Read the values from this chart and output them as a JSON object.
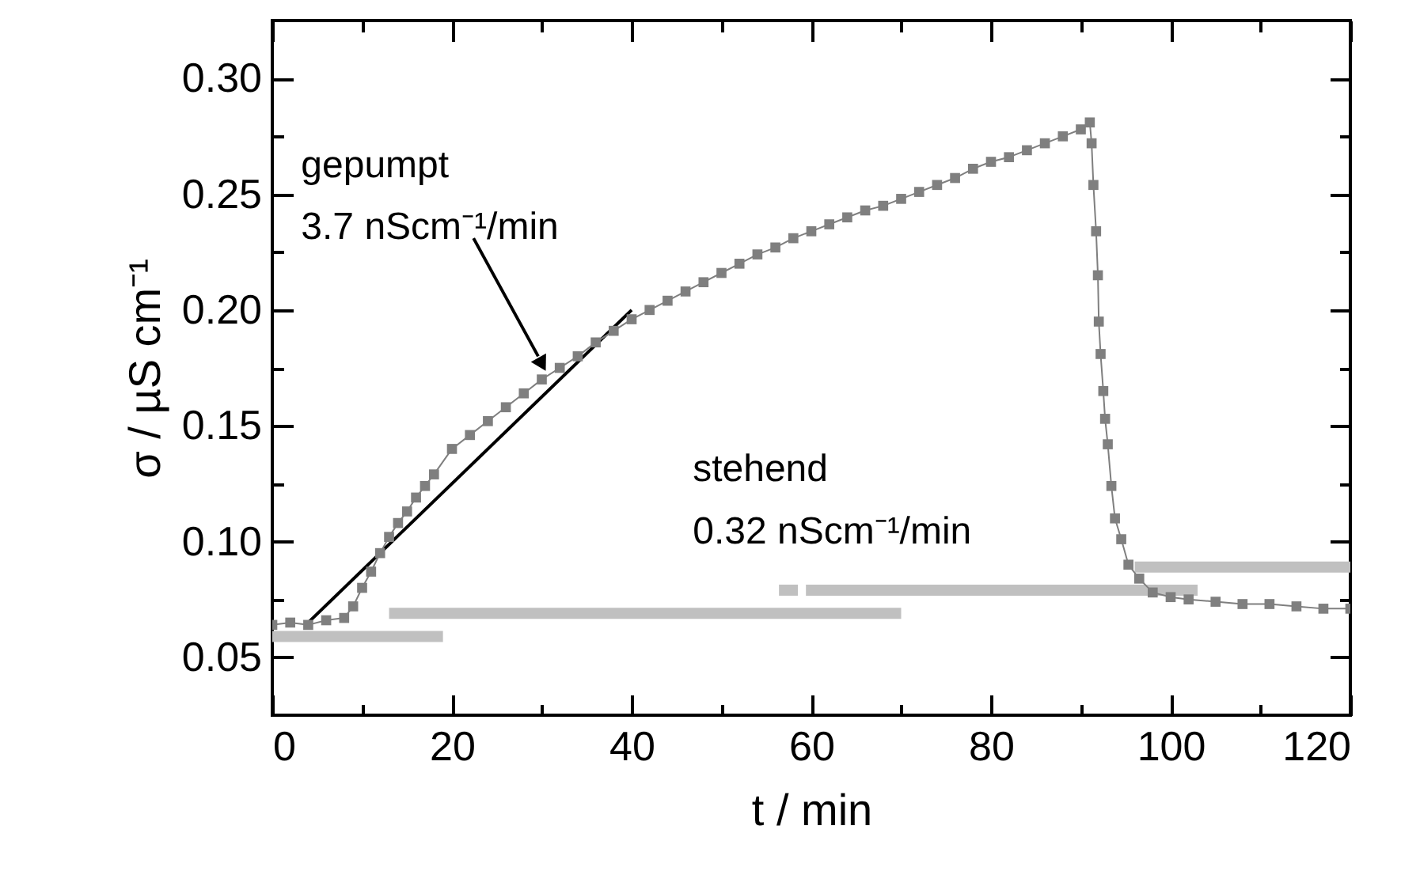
{
  "chart_data": {
    "type": "line",
    "xlabel": "t / min",
    "ylabel": "σ / µS cm⁻¹",
    "xlim": [
      0,
      120
    ],
    "ylim": [
      0.025,
      0.325
    ],
    "xticks": [
      0,
      {
        "value": 10,
        "label": null
      },
      20,
      {
        "value": 30,
        "label": null
      },
      40,
      {
        "value": 50,
        "label": null
      },
      60,
      {
        "value": 70,
        "label": null
      },
      80,
      {
        "value": 90,
        "label": null
      },
      100,
      {
        "value": 110,
        "label": null
      },
      120
    ],
    "yticks": [
      {
        "value": 0.05,
        "label": "0.05"
      },
      {
        "value": 0.075,
        "label": null
      },
      {
        "value": 0.1,
        "label": "0.10"
      },
      {
        "value": 0.125,
        "label": null
      },
      {
        "value": 0.15,
        "label": "0.15"
      },
      {
        "value": 0.175,
        "label": null
      },
      {
        "value": 0.2,
        "label": "0.20"
      },
      {
        "value": 0.225,
        "label": null
      },
      {
        "value": 0.25,
        "label": "0.25"
      },
      {
        "value": 0.275,
        "label": null
      },
      {
        "value": 0.3,
        "label": "0.30"
      }
    ],
    "marker": "square",
    "series": [
      {
        "color": "#7f7f7f",
        "x": [
          0,
          2,
          4,
          6,
          8,
          9,
          10,
          11,
          12,
          13,
          14,
          15,
          16,
          17,
          18,
          20,
          22,
          24,
          26,
          28,
          30,
          32,
          34,
          36,
          38,
          40,
          42,
          44,
          46,
          48,
          50,
          52,
          54,
          56,
          58,
          60,
          62,
          64,
          66,
          68,
          70,
          72,
          74,
          76,
          78,
          80,
          82,
          84,
          86,
          88,
          90,
          91,
          91.2,
          91.4,
          91.7,
          91.9,
          92.0,
          92.2,
          92.5,
          92.7,
          93.0,
          93.4,
          93.8,
          94.5,
          95.3,
          96.5,
          98,
          100,
          102,
          105,
          108,
          111,
          114,
          117,
          120
        ],
        "values": [
          0.064,
          0.065,
          0.064,
          0.066,
          0.067,
          0.072,
          0.08,
          0.087,
          0.095,
          0.102,
          0.108,
          0.113,
          0.119,
          0.124,
          0.129,
          0.14,
          0.146,
          0.152,
          0.158,
          0.164,
          0.17,
          0.175,
          0.18,
          0.186,
          0.191,
          0.196,
          0.2,
          0.204,
          0.208,
          0.212,
          0.216,
          0.22,
          0.224,
          0.227,
          0.231,
          0.234,
          0.237,
          0.24,
          0.243,
          0.245,
          0.248,
          0.251,
          0.254,
          0.257,
          0.261,
          0.264,
          0.266,
          0.269,
          0.272,
          0.275,
          0.278,
          0.281,
          0.272,
          0.254,
          0.234,
          0.215,
          0.195,
          0.181,
          0.165,
          0.153,
          0.142,
          0.124,
          0.11,
          0.101,
          0.09,
          0.084,
          0.078,
          0.076,
          0.075,
          0.074,
          0.073,
          0.073,
          0.072,
          0.071,
          0.071
        ]
      },
      {
        "color": "#000000",
        "marker": "none",
        "x": [
          4,
          40
        ],
        "values": [
          0.065,
          0.2
        ]
      },
      {
        "color": "#c0c0c0",
        "marker": "none",
        "x": [
          0,
          19
        ],
        "values": [
          0.059,
          0.059
        ]
      },
      {
        "color": "#c0c0c0",
        "marker": "none",
        "x": [
          13,
          70
        ],
        "values": [
          0.069,
          0.069
        ]
      },
      {
        "color": "#c0c0c0",
        "marker": "none",
        "x": [
          56.4,
          58.5
        ],
        "values": [
          0.079,
          0.079
        ]
      },
      {
        "color": "#c0c0c0",
        "marker": "none",
        "x": [
          59.4,
          103
        ],
        "values": [
          0.079,
          0.079
        ]
      },
      {
        "color": "#c0c0c0",
        "marker": "none",
        "x": [
          96,
          120
        ],
        "values": [
          0.089,
          0.089
        ]
      }
    ],
    "annotations": [
      "gepumpt",
      "3.7 nScm⁻¹/min",
      "stehend",
      "0.32 nScm⁻¹/min"
    ]
  }
}
